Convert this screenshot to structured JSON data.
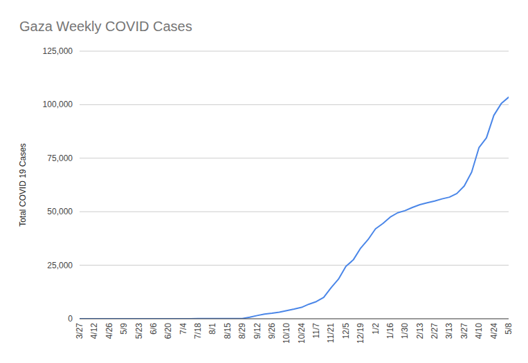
{
  "chart_data": {
    "type": "line",
    "title": "Gaza Weekly COVID Cases",
    "y_label": "Total COVID 19 Cases",
    "categories": [
      "3/27",
      null,
      "4/12",
      null,
      "4/26",
      null,
      "5/9",
      null,
      "5/23",
      null,
      "6/6",
      null,
      "6/20",
      null,
      "7/4",
      null,
      "7/18",
      null,
      "8/1",
      null,
      "8/15",
      null,
      "8/29",
      null,
      "9/12",
      null,
      "9/26",
      null,
      "10/10",
      null,
      "10/24",
      null,
      "11/7",
      null,
      "11/21",
      null,
      "12/5",
      null,
      "12/19",
      null,
      "1/2",
      null,
      "1/16",
      null,
      "1/30",
      null,
      "2/13",
      null,
      "2/27",
      null,
      "3/13",
      null,
      "3/27",
      null,
      "4/10",
      null,
      "4/24",
      null,
      "5/8"
    ],
    "values": [
      0,
      0,
      0,
      0,
      0,
      0,
      0,
      0,
      0,
      0,
      0,
      0,
      20,
      20,
      30,
      40,
      50,
      60,
      70,
      70,
      80,
      90,
      100,
      700,
      1500,
      2200,
      2600,
      3100,
      3800,
      4500,
      5300,
      6800,
      8000,
      10000,
      14500,
      18500,
      24500,
      27500,
      33000,
      37000,
      42000,
      44500,
      47500,
      49500,
      50500,
      52000,
      53300,
      54200,
      55000,
      56000,
      56800,
      58500,
      62000,
      68500,
      80000,
      84500,
      95000,
      100500,
      103500
    ],
    "color": "#4a86e8",
    "ylim": [
      0,
      125000
    ],
    "yticks": [
      0,
      {
        "value": 25000,
        "label": "25,000"
      },
      {
        "value": 50000,
        "label": "50,000"
      },
      {
        "value": 75000,
        "label": "75,000"
      },
      {
        "value": 100000,
        "label": "100,000"
      },
      {
        "value": 125000,
        "label": "125,000"
      }
    ],
    "grid": true
  }
}
